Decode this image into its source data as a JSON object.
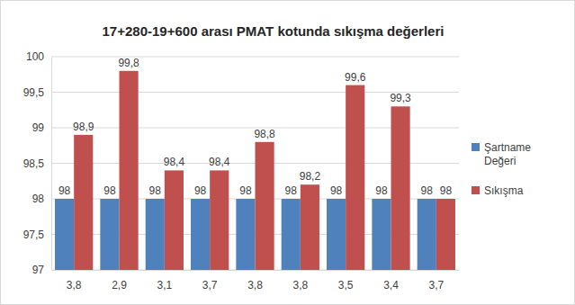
{
  "chart_data": {
    "type": "bar",
    "title": "17+280-19+600 arası PMAT kotunda sıkışma değerleri",
    "categories": [
      "3,8",
      "2,9",
      "3,1",
      "3,7",
      "3,8",
      "3,8",
      "3,5",
      "3,4",
      "3,7"
    ],
    "series": [
      {
        "name": "Şartname Değeri",
        "color": "#4f81bd",
        "values": [
          98,
          98,
          98,
          98,
          98,
          98,
          98,
          98,
          98
        ]
      },
      {
        "name": "Sıkışma",
        "color": "#c0504d",
        "values": [
          98.9,
          99.8,
          98.4,
          98.4,
          98.8,
          98.2,
          99.6,
          99.3,
          98
        ],
        "value_labels": [
          "98,9",
          "99,8",
          "98,4",
          "98,4",
          "98,8",
          "98,2",
          "99,6",
          "99,3",
          "98"
        ]
      }
    ],
    "ylim": [
      97,
      100
    ],
    "yticks": [
      97,
      {
        "value": 97.5,
        "label": "97,5"
      },
      98,
      {
        "value": 98.5,
        "label": "98,5"
      },
      99,
      {
        "value": 99.5,
        "label": "99,5"
      },
      100
    ],
    "grid": true,
    "legend": "right",
    "data_labels": true
  }
}
